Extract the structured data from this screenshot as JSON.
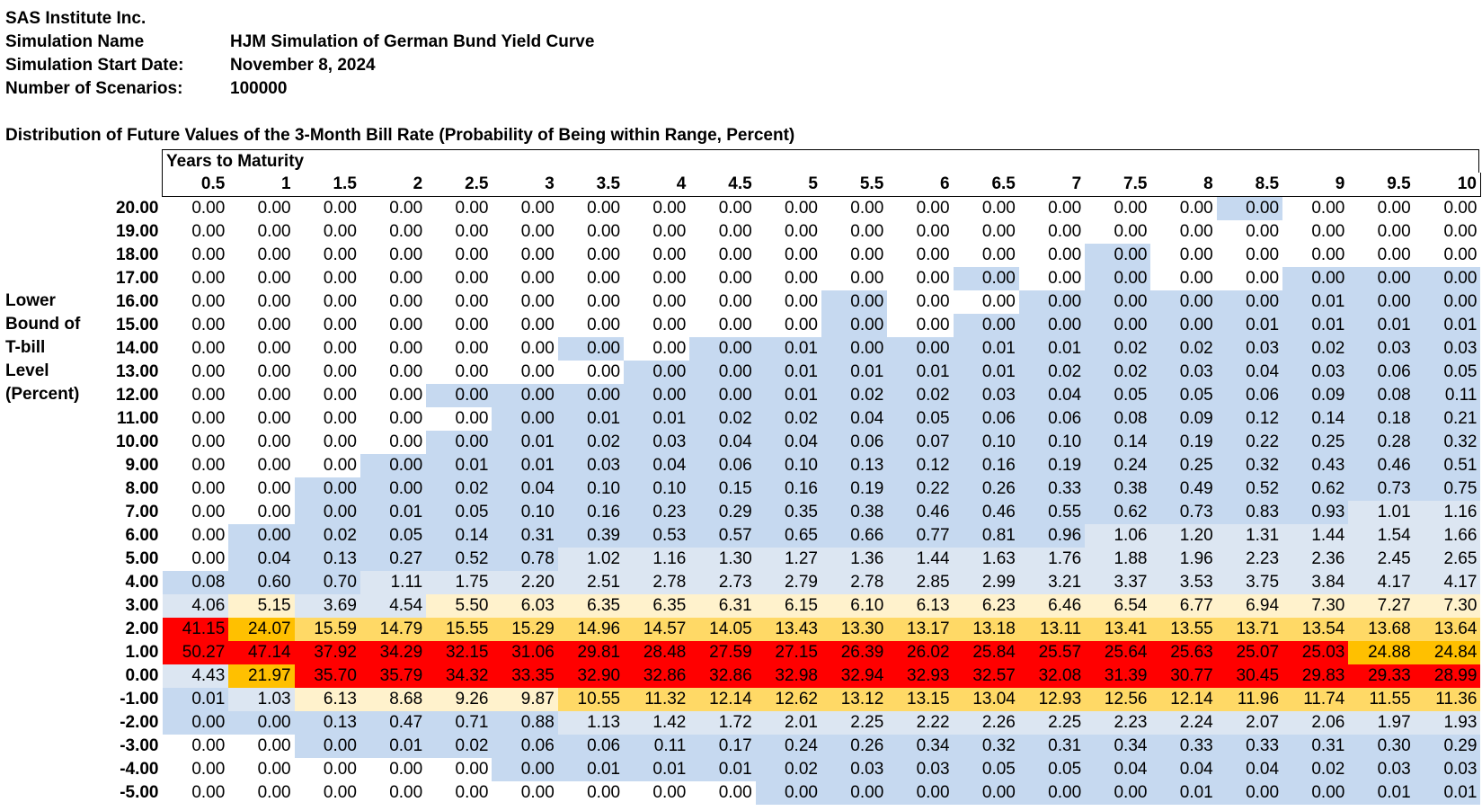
{
  "meta": {
    "company": "SAS Institute Inc.",
    "rows": [
      {
        "label": "Simulation Name",
        "value": "HJM Simulation of German Bund Yield Curve"
      },
      {
        "label": "Simulation Start Date:",
        "value": "November 8, 2024"
      },
      {
        "label": "Number of Scenarios:",
        "value": "100000"
      }
    ]
  },
  "table_title": "Distribution of Future Values of the 3-Month Bill Rate (Probability of Being within Range, Percent)",
  "years_label": "Years to Maturity",
  "side_label": [
    "Lower",
    "Bound of",
    "T-bill",
    "Level",
    "(Percent)"
  ],
  "columns": [
    "0.5",
    "1",
    "1.5",
    "2",
    "2.5",
    "3",
    "3.5",
    "4",
    "4.5",
    "5",
    "5.5",
    "6",
    "6.5",
    "7",
    "7.5",
    "8",
    "8.5",
    "9",
    "9.5",
    "10"
  ],
  "rows": [
    {
      "bound": "20.00",
      "values": [
        "0.00",
        "0.00",
        "0.00",
        "0.00",
        "0.00",
        "0.00",
        "0.00",
        "0.00",
        "0.00",
        "0.00",
        "0.00",
        "0.00",
        "0.00",
        "0.00",
        "0.00",
        "0.00",
        "0.00",
        "0.00",
        "0.00",
        "0.00"
      ],
      "colors": [
        "w",
        "w",
        "w",
        "w",
        "w",
        "w",
        "w",
        "w",
        "w",
        "w",
        "w",
        "w",
        "w",
        "w",
        "w",
        "w",
        "b",
        "w",
        "w",
        "w"
      ]
    },
    {
      "bound": "19.00",
      "values": [
        "0.00",
        "0.00",
        "0.00",
        "0.00",
        "0.00",
        "0.00",
        "0.00",
        "0.00",
        "0.00",
        "0.00",
        "0.00",
        "0.00",
        "0.00",
        "0.00",
        "0.00",
        "0.00",
        "0.00",
        "0.00",
        "0.00",
        "0.00"
      ],
      "colors": [
        "w",
        "w",
        "w",
        "w",
        "w",
        "w",
        "w",
        "w",
        "w",
        "w",
        "w",
        "w",
        "w",
        "w",
        "w",
        "w",
        "w",
        "w",
        "w",
        "w"
      ]
    },
    {
      "bound": "18.00",
      "values": [
        "0.00",
        "0.00",
        "0.00",
        "0.00",
        "0.00",
        "0.00",
        "0.00",
        "0.00",
        "0.00",
        "0.00",
        "0.00",
        "0.00",
        "0.00",
        "0.00",
        "0.00",
        "0.00",
        "0.00",
        "0.00",
        "0.00",
        "0.00"
      ],
      "colors": [
        "w",
        "w",
        "w",
        "w",
        "w",
        "w",
        "w",
        "w",
        "w",
        "w",
        "w",
        "w",
        "w",
        "w",
        "b",
        "w",
        "w",
        "w",
        "w",
        "w"
      ]
    },
    {
      "bound": "17.00",
      "values": [
        "0.00",
        "0.00",
        "0.00",
        "0.00",
        "0.00",
        "0.00",
        "0.00",
        "0.00",
        "0.00",
        "0.00",
        "0.00",
        "0.00",
        "0.00",
        "0.00",
        "0.00",
        "0.00",
        "0.00",
        "0.00",
        "0.00",
        "0.00"
      ],
      "colors": [
        "w",
        "w",
        "w",
        "w",
        "w",
        "w",
        "w",
        "w",
        "w",
        "w",
        "w",
        "w",
        "b",
        "w",
        "b",
        "w",
        "w",
        "b",
        "b",
        "b"
      ]
    },
    {
      "bound": "16.00",
      "values": [
        "0.00",
        "0.00",
        "0.00",
        "0.00",
        "0.00",
        "0.00",
        "0.00",
        "0.00",
        "0.00",
        "0.00",
        "0.00",
        "0.00",
        "0.00",
        "0.00",
        "0.00",
        "0.00",
        "0.00",
        "0.01",
        "0.00",
        "0.00"
      ],
      "colors": [
        "w",
        "w",
        "w",
        "w",
        "w",
        "w",
        "w",
        "w",
        "w",
        "w",
        "b",
        "w",
        "w",
        "b",
        "b",
        "b",
        "b",
        "b",
        "b",
        "b"
      ]
    },
    {
      "bound": "15.00",
      "values": [
        "0.00",
        "0.00",
        "0.00",
        "0.00",
        "0.00",
        "0.00",
        "0.00",
        "0.00",
        "0.00",
        "0.00",
        "0.00",
        "0.00",
        "0.00",
        "0.00",
        "0.00",
        "0.00",
        "0.01",
        "0.01",
        "0.01",
        "0.01"
      ],
      "colors": [
        "w",
        "w",
        "w",
        "w",
        "w",
        "w",
        "w",
        "w",
        "w",
        "w",
        "b",
        "w",
        "b",
        "b",
        "b",
        "b",
        "b",
        "b",
        "b",
        "b"
      ]
    },
    {
      "bound": "14.00",
      "values": [
        "0.00",
        "0.00",
        "0.00",
        "0.00",
        "0.00",
        "0.00",
        "0.00",
        "0.00",
        "0.00",
        "0.01",
        "0.00",
        "0.00",
        "0.01",
        "0.01",
        "0.02",
        "0.02",
        "0.03",
        "0.02",
        "0.03",
        "0.03"
      ],
      "colors": [
        "w",
        "w",
        "w",
        "w",
        "w",
        "w",
        "b",
        "w",
        "b",
        "b",
        "b",
        "b",
        "b",
        "b",
        "b",
        "b",
        "b",
        "b",
        "b",
        "b"
      ]
    },
    {
      "bound": "13.00",
      "values": [
        "0.00",
        "0.00",
        "0.00",
        "0.00",
        "0.00",
        "0.00",
        "0.00",
        "0.00",
        "0.00",
        "0.01",
        "0.01",
        "0.01",
        "0.01",
        "0.02",
        "0.02",
        "0.03",
        "0.04",
        "0.03",
        "0.06",
        "0.05"
      ],
      "colors": [
        "w",
        "w",
        "w",
        "w",
        "w",
        "w",
        "w",
        "b",
        "b",
        "b",
        "b",
        "b",
        "b",
        "b",
        "b",
        "b",
        "b",
        "b",
        "b",
        "b"
      ]
    },
    {
      "bound": "12.00",
      "values": [
        "0.00",
        "0.00",
        "0.00",
        "0.00",
        "0.00",
        "0.00",
        "0.00",
        "0.00",
        "0.00",
        "0.01",
        "0.02",
        "0.02",
        "0.03",
        "0.04",
        "0.05",
        "0.05",
        "0.06",
        "0.09",
        "0.08",
        "0.11"
      ],
      "colors": [
        "w",
        "w",
        "w",
        "w",
        "b",
        "b",
        "b",
        "b",
        "b",
        "b",
        "b",
        "b",
        "b",
        "b",
        "b",
        "b",
        "b",
        "b",
        "b",
        "b"
      ]
    },
    {
      "bound": "11.00",
      "values": [
        "0.00",
        "0.00",
        "0.00",
        "0.00",
        "0.00",
        "0.00",
        "0.01",
        "0.01",
        "0.02",
        "0.02",
        "0.04",
        "0.05",
        "0.06",
        "0.06",
        "0.08",
        "0.09",
        "0.12",
        "0.14",
        "0.18",
        "0.21"
      ],
      "colors": [
        "w",
        "w",
        "w",
        "w",
        "w",
        "b",
        "b",
        "b",
        "b",
        "b",
        "b",
        "b",
        "b",
        "b",
        "b",
        "b",
        "b",
        "b",
        "b",
        "b"
      ]
    },
    {
      "bound": "10.00",
      "values": [
        "0.00",
        "0.00",
        "0.00",
        "0.00",
        "0.00",
        "0.01",
        "0.02",
        "0.03",
        "0.04",
        "0.04",
        "0.06",
        "0.07",
        "0.10",
        "0.10",
        "0.14",
        "0.19",
        "0.22",
        "0.25",
        "0.28",
        "0.32"
      ],
      "colors": [
        "w",
        "w",
        "w",
        "w",
        "b",
        "b",
        "b",
        "b",
        "b",
        "b",
        "b",
        "b",
        "b",
        "b",
        "b",
        "b",
        "b",
        "b",
        "b",
        "b"
      ]
    },
    {
      "bound": "9.00",
      "values": [
        "0.00",
        "0.00",
        "0.00",
        "0.00",
        "0.01",
        "0.01",
        "0.03",
        "0.04",
        "0.06",
        "0.10",
        "0.13",
        "0.12",
        "0.16",
        "0.19",
        "0.24",
        "0.25",
        "0.32",
        "0.43",
        "0.46",
        "0.51"
      ],
      "colors": [
        "w",
        "w",
        "w",
        "b",
        "b",
        "b",
        "b",
        "b",
        "b",
        "b",
        "b",
        "b",
        "b",
        "b",
        "b",
        "b",
        "b",
        "b",
        "b",
        "b"
      ]
    },
    {
      "bound": "8.00",
      "values": [
        "0.00",
        "0.00",
        "0.00",
        "0.00",
        "0.02",
        "0.04",
        "0.10",
        "0.10",
        "0.15",
        "0.16",
        "0.19",
        "0.22",
        "0.26",
        "0.33",
        "0.38",
        "0.49",
        "0.52",
        "0.62",
        "0.73",
        "0.75"
      ],
      "colors": [
        "w",
        "w",
        "b",
        "b",
        "b",
        "b",
        "b",
        "b",
        "b",
        "b",
        "b",
        "b",
        "b",
        "b",
        "b",
        "b",
        "b",
        "b",
        "b",
        "b"
      ]
    },
    {
      "bound": "7.00",
      "values": [
        "0.00",
        "0.00",
        "0.00",
        "0.01",
        "0.05",
        "0.10",
        "0.16",
        "0.23",
        "0.29",
        "0.35",
        "0.38",
        "0.46",
        "0.46",
        "0.55",
        "0.62",
        "0.73",
        "0.83",
        "0.93",
        "1.01",
        "1.16"
      ],
      "colors": [
        "w",
        "w",
        "b",
        "b",
        "b",
        "b",
        "b",
        "b",
        "b",
        "b",
        "b",
        "b",
        "b",
        "b",
        "b",
        "b",
        "b",
        "b",
        "l",
        "l"
      ]
    },
    {
      "bound": "6.00",
      "values": [
        "0.00",
        "0.00",
        "0.02",
        "0.05",
        "0.14",
        "0.31",
        "0.39",
        "0.53",
        "0.57",
        "0.65",
        "0.66",
        "0.77",
        "0.81",
        "0.96",
        "1.06",
        "1.20",
        "1.31",
        "1.44",
        "1.54",
        "1.66"
      ],
      "colors": [
        "w",
        "b",
        "b",
        "b",
        "b",
        "b",
        "b",
        "b",
        "b",
        "b",
        "b",
        "b",
        "b",
        "b",
        "l",
        "l",
        "l",
        "l",
        "l",
        "l"
      ]
    },
    {
      "bound": "5.00",
      "values": [
        "0.00",
        "0.04",
        "0.13",
        "0.27",
        "0.52",
        "0.78",
        "1.02",
        "1.16",
        "1.30",
        "1.27",
        "1.36",
        "1.44",
        "1.63",
        "1.76",
        "1.88",
        "1.96",
        "2.23",
        "2.36",
        "2.45",
        "2.65"
      ],
      "colors": [
        "w",
        "b",
        "b",
        "b",
        "b",
        "b",
        "l",
        "l",
        "l",
        "l",
        "l",
        "l",
        "l",
        "l",
        "l",
        "l",
        "l",
        "l",
        "l",
        "l"
      ]
    },
    {
      "bound": "4.00",
      "values": [
        "0.08",
        "0.60",
        "0.70",
        "1.11",
        "1.75",
        "2.20",
        "2.51",
        "2.78",
        "2.73",
        "2.79",
        "2.78",
        "2.85",
        "2.99",
        "3.21",
        "3.37",
        "3.53",
        "3.75",
        "3.84",
        "4.17",
        "4.17"
      ],
      "colors": [
        "b",
        "b",
        "b",
        "l",
        "l",
        "l",
        "l",
        "l",
        "l",
        "l",
        "l",
        "l",
        "l",
        "l",
        "l",
        "l",
        "l",
        "l",
        "l",
        "l"
      ]
    },
    {
      "bound": "3.00",
      "values": [
        "4.06",
        "5.15",
        "3.69",
        "4.54",
        "5.50",
        "6.03",
        "6.35",
        "6.35",
        "6.31",
        "6.15",
        "6.10",
        "6.13",
        "6.23",
        "6.46",
        "6.54",
        "6.77",
        "6.94",
        "7.30",
        "7.27",
        "7.30"
      ],
      "colors": [
        "l",
        "y",
        "l",
        "l",
        "y",
        "y",
        "y",
        "y",
        "y",
        "y",
        "y",
        "y",
        "y",
        "y",
        "y",
        "y",
        "y",
        "y",
        "y",
        "y"
      ]
    },
    {
      "bound": "2.00",
      "values": [
        "41.15",
        "24.07",
        "15.59",
        "14.79",
        "15.55",
        "15.29",
        "14.96",
        "14.57",
        "14.05",
        "13.43",
        "13.30",
        "13.17",
        "13.18",
        "13.11",
        "13.41",
        "13.55",
        "13.71",
        "13.54",
        "13.68",
        "13.64"
      ],
      "colors": [
        "r",
        "o",
        "g",
        "g",
        "g",
        "g",
        "g",
        "g",
        "g",
        "g",
        "g",
        "g",
        "g",
        "g",
        "g",
        "g",
        "g",
        "g",
        "g",
        "g"
      ]
    },
    {
      "bound": "1.00",
      "values": [
        "50.27",
        "47.14",
        "37.92",
        "34.29",
        "32.15",
        "31.06",
        "29.81",
        "28.48",
        "27.59",
        "27.15",
        "26.39",
        "26.02",
        "25.84",
        "25.57",
        "25.64",
        "25.63",
        "25.07",
        "25.03",
        "24.88",
        "24.84"
      ],
      "colors": [
        "r",
        "r",
        "r",
        "r",
        "r",
        "r",
        "r",
        "r",
        "r",
        "r",
        "r",
        "r",
        "r",
        "r",
        "r",
        "r",
        "r",
        "r",
        "o",
        "o"
      ]
    },
    {
      "bound": "0.00",
      "values": [
        "4.43",
        "21.97",
        "35.70",
        "35.79",
        "34.32",
        "33.35",
        "32.90",
        "32.86",
        "32.86",
        "32.98",
        "32.94",
        "32.93",
        "32.57",
        "32.08",
        "31.39",
        "30.77",
        "30.45",
        "29.83",
        "29.33",
        "28.99"
      ],
      "colors": [
        "l",
        "o",
        "r",
        "r",
        "r",
        "r",
        "r",
        "r",
        "r",
        "r",
        "r",
        "r",
        "r",
        "r",
        "r",
        "r",
        "r",
        "r",
        "r",
        "r"
      ]
    },
    {
      "bound": "-1.00",
      "values": [
        "0.01",
        "1.03",
        "6.13",
        "8.68",
        "9.26",
        "9.87",
        "10.55",
        "11.32",
        "12.14",
        "12.62",
        "13.12",
        "13.15",
        "13.04",
        "12.93",
        "12.56",
        "12.14",
        "11.96",
        "11.74",
        "11.55",
        "11.36"
      ],
      "colors": [
        "b",
        "l",
        "y",
        "y",
        "y",
        "y",
        "g",
        "g",
        "g",
        "g",
        "g",
        "g",
        "g",
        "g",
        "g",
        "g",
        "g",
        "g",
        "g",
        "g"
      ]
    },
    {
      "bound": "-2.00",
      "values": [
        "0.00",
        "0.00",
        "0.13",
        "0.47",
        "0.71",
        "0.88",
        "1.13",
        "1.42",
        "1.72",
        "2.01",
        "2.25",
        "2.22",
        "2.26",
        "2.25",
        "2.23",
        "2.24",
        "2.07",
        "2.06",
        "1.97",
        "1.93"
      ],
      "colors": [
        "b",
        "b",
        "b",
        "b",
        "b",
        "b",
        "l",
        "l",
        "l",
        "l",
        "l",
        "l",
        "l",
        "l",
        "l",
        "l",
        "l",
        "l",
        "l",
        "l"
      ]
    },
    {
      "bound": "-3.00",
      "values": [
        "0.00",
        "0.00",
        "0.00",
        "0.01",
        "0.02",
        "0.06",
        "0.06",
        "0.11",
        "0.17",
        "0.24",
        "0.26",
        "0.34",
        "0.32",
        "0.31",
        "0.34",
        "0.33",
        "0.33",
        "0.31",
        "0.30",
        "0.29"
      ],
      "colors": [
        "w",
        "w",
        "b",
        "b",
        "b",
        "b",
        "b",
        "b",
        "b",
        "b",
        "b",
        "b",
        "b",
        "b",
        "b",
        "b",
        "b",
        "b",
        "b",
        "b"
      ]
    },
    {
      "bound": "-4.00",
      "values": [
        "0.00",
        "0.00",
        "0.00",
        "0.00",
        "0.00",
        "0.00",
        "0.01",
        "0.01",
        "0.01",
        "0.02",
        "0.03",
        "0.03",
        "0.05",
        "0.05",
        "0.04",
        "0.04",
        "0.04",
        "0.02",
        "0.03",
        "0.03"
      ],
      "colors": [
        "w",
        "w",
        "w",
        "w",
        "w",
        "b",
        "b",
        "b",
        "b",
        "b",
        "b",
        "b",
        "b",
        "b",
        "b",
        "b",
        "b",
        "b",
        "b",
        "b"
      ]
    },
    {
      "bound": "-5.00",
      "values": [
        "0.00",
        "0.00",
        "0.00",
        "0.00",
        "0.00",
        "0.00",
        "0.00",
        "0.00",
        "0.00",
        "0.00",
        "0.00",
        "0.00",
        "0.00",
        "0.00",
        "0.00",
        "0.01",
        "0.00",
        "0.00",
        "0.01",
        "0.01"
      ],
      "colors": [
        "w",
        "w",
        "w",
        "w",
        "w",
        "w",
        "w",
        "w",
        "w",
        "b",
        "b",
        "b",
        "b",
        "b",
        "b",
        "b",
        "b",
        "b",
        "b",
        "b"
      ]
    }
  ],
  "palette": {
    "w": "#ffffff",
    "b": "#c6d9f0",
    "l": "#dce6f2",
    "y": "#fff2cc",
    "g": "#ffd966",
    "o": "#ffc000",
    "r": "#ff0000"
  }
}
